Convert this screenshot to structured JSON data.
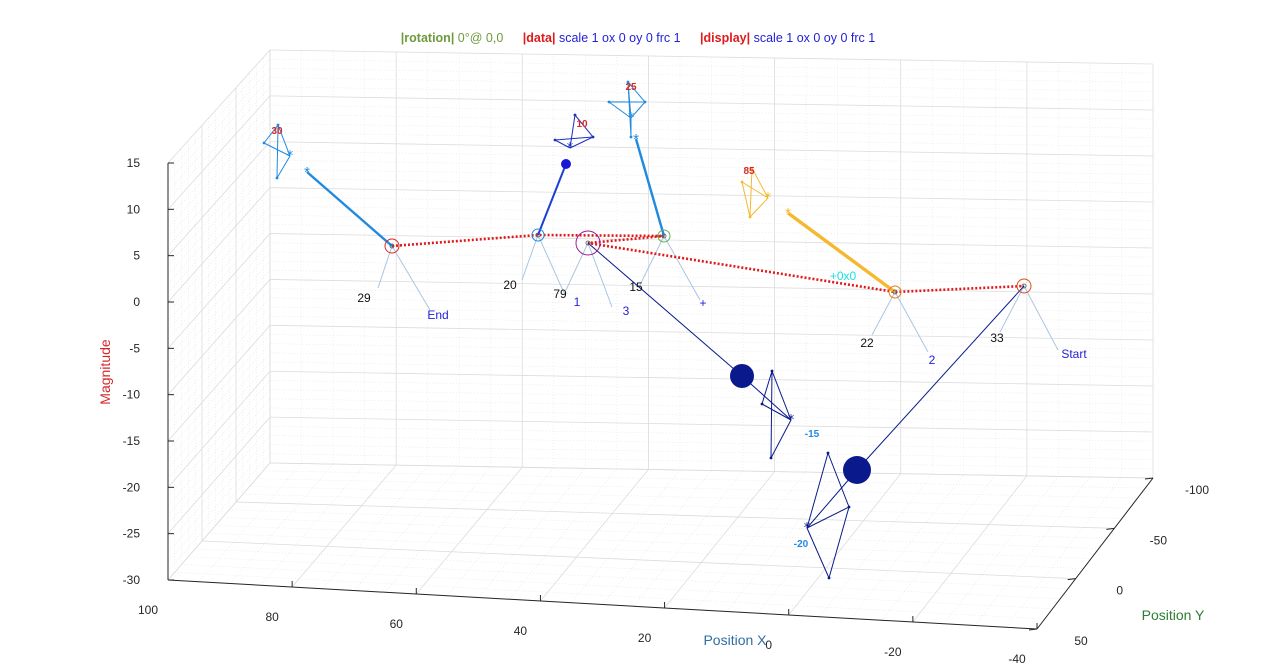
{
  "header": {
    "rotation": {
      "key": "|rotation|",
      "text": "0°@ 0,0",
      "color": "#6f9a3c"
    },
    "data": {
      "key": "|data|",
      "text": "scale 1  ox 0  oy 0  frc 1",
      "key_color": "#e0191b",
      "text_color": "#1f1fd6"
    },
    "display": {
      "key": "|display|",
      "text": "scale 1  ox 0  oy 0  frc 1",
      "key_color": "#e0191b",
      "text_color": "#1f1fd6"
    }
  },
  "chart_data": {
    "type": "scatter3d",
    "xlabel": "Position X",
    "ylabel": "Position Y",
    "zlabel": "Magnitude",
    "xlim": [
      -40,
      100
    ],
    "ylim": [
      -100,
      50
    ],
    "zlim": [
      -30,
      15
    ],
    "x_ticks": [
      "100",
      "80",
      "60",
      "40",
      "20",
      "0",
      "-20",
      "-40"
    ],
    "y_ticks": [
      "-100",
      "-50",
      "0",
      "50"
    ],
    "z_ticks": [
      "15",
      "10",
      "5",
      "0",
      "-5",
      "-10",
      "-15",
      "-20",
      "-25",
      "-30"
    ],
    "grid": true,
    "colors": {
      "xlabel": "#2f6ea5",
      "ylabel": "#2e7d32",
      "zlabel": "#d62728",
      "path": "#e0191b",
      "light": "#a9c6e2",
      "navy": "#0a1a8c",
      "blue": "#1f8ae0",
      "orange": "#f5b82e",
      "cyan": "#19e0e0"
    },
    "path_labels": [
      "29",
      "20",
      "79",
      "15",
      "22",
      "33"
    ],
    "point_labels": [
      "End",
      "1",
      "3",
      "+",
      "2",
      "Start"
    ],
    "marker_labels": [
      "30",
      "10",
      "25",
      "85",
      "-15",
      "-20"
    ],
    "annotation": "+0x0"
  }
}
